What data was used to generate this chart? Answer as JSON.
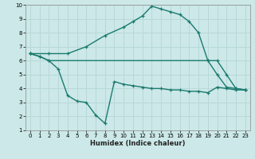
{
  "xlabel": "Humidex (Indice chaleur)",
  "xlim": [
    -0.5,
    23.5
  ],
  "ylim": [
    1,
    10
  ],
  "xticks": [
    0,
    1,
    2,
    3,
    4,
    5,
    6,
    7,
    8,
    9,
    10,
    11,
    12,
    13,
    14,
    15,
    16,
    17,
    18,
    19,
    20,
    21,
    22,
    23
  ],
  "yticks": [
    1,
    2,
    3,
    4,
    5,
    6,
    7,
    8,
    9,
    10
  ],
  "bg_color": "#cce8e8",
  "line_color": "#1a7a6e",
  "grid_color": "#b8d8d8",
  "line1_x": [
    0,
    2,
    4,
    6,
    8,
    10,
    11,
    12,
    13,
    14,
    15,
    16,
    17,
    18,
    19,
    20,
    21,
    22,
    23
  ],
  "line1_y": [
    6.5,
    6.5,
    6.5,
    7.0,
    7.8,
    8.4,
    8.8,
    9.2,
    9.9,
    9.7,
    9.5,
    9.3,
    8.8,
    8.0,
    6.0,
    5.0,
    4.1,
    4.0,
    3.9
  ],
  "line2_x": [
    0,
    1,
    2,
    19,
    20,
    21,
    22,
    23
  ],
  "line2_y": [
    6.5,
    6.3,
    6.0,
    6.0,
    6.0,
    5.0,
    4.0,
    3.9
  ],
  "line3_x": [
    0,
    1,
    2,
    3,
    4,
    5,
    6,
    7,
    8,
    9,
    10,
    11,
    12,
    13,
    14,
    15,
    16,
    17,
    18,
    19,
    20,
    21,
    22,
    23
  ],
  "line3_y": [
    6.5,
    6.3,
    6.0,
    5.4,
    3.5,
    3.1,
    3.0,
    2.1,
    1.5,
    4.5,
    4.3,
    4.2,
    4.1,
    4.0,
    4.0,
    3.9,
    3.9,
    3.8,
    3.8,
    3.7,
    4.1,
    4.0,
    3.9,
    3.9
  ]
}
